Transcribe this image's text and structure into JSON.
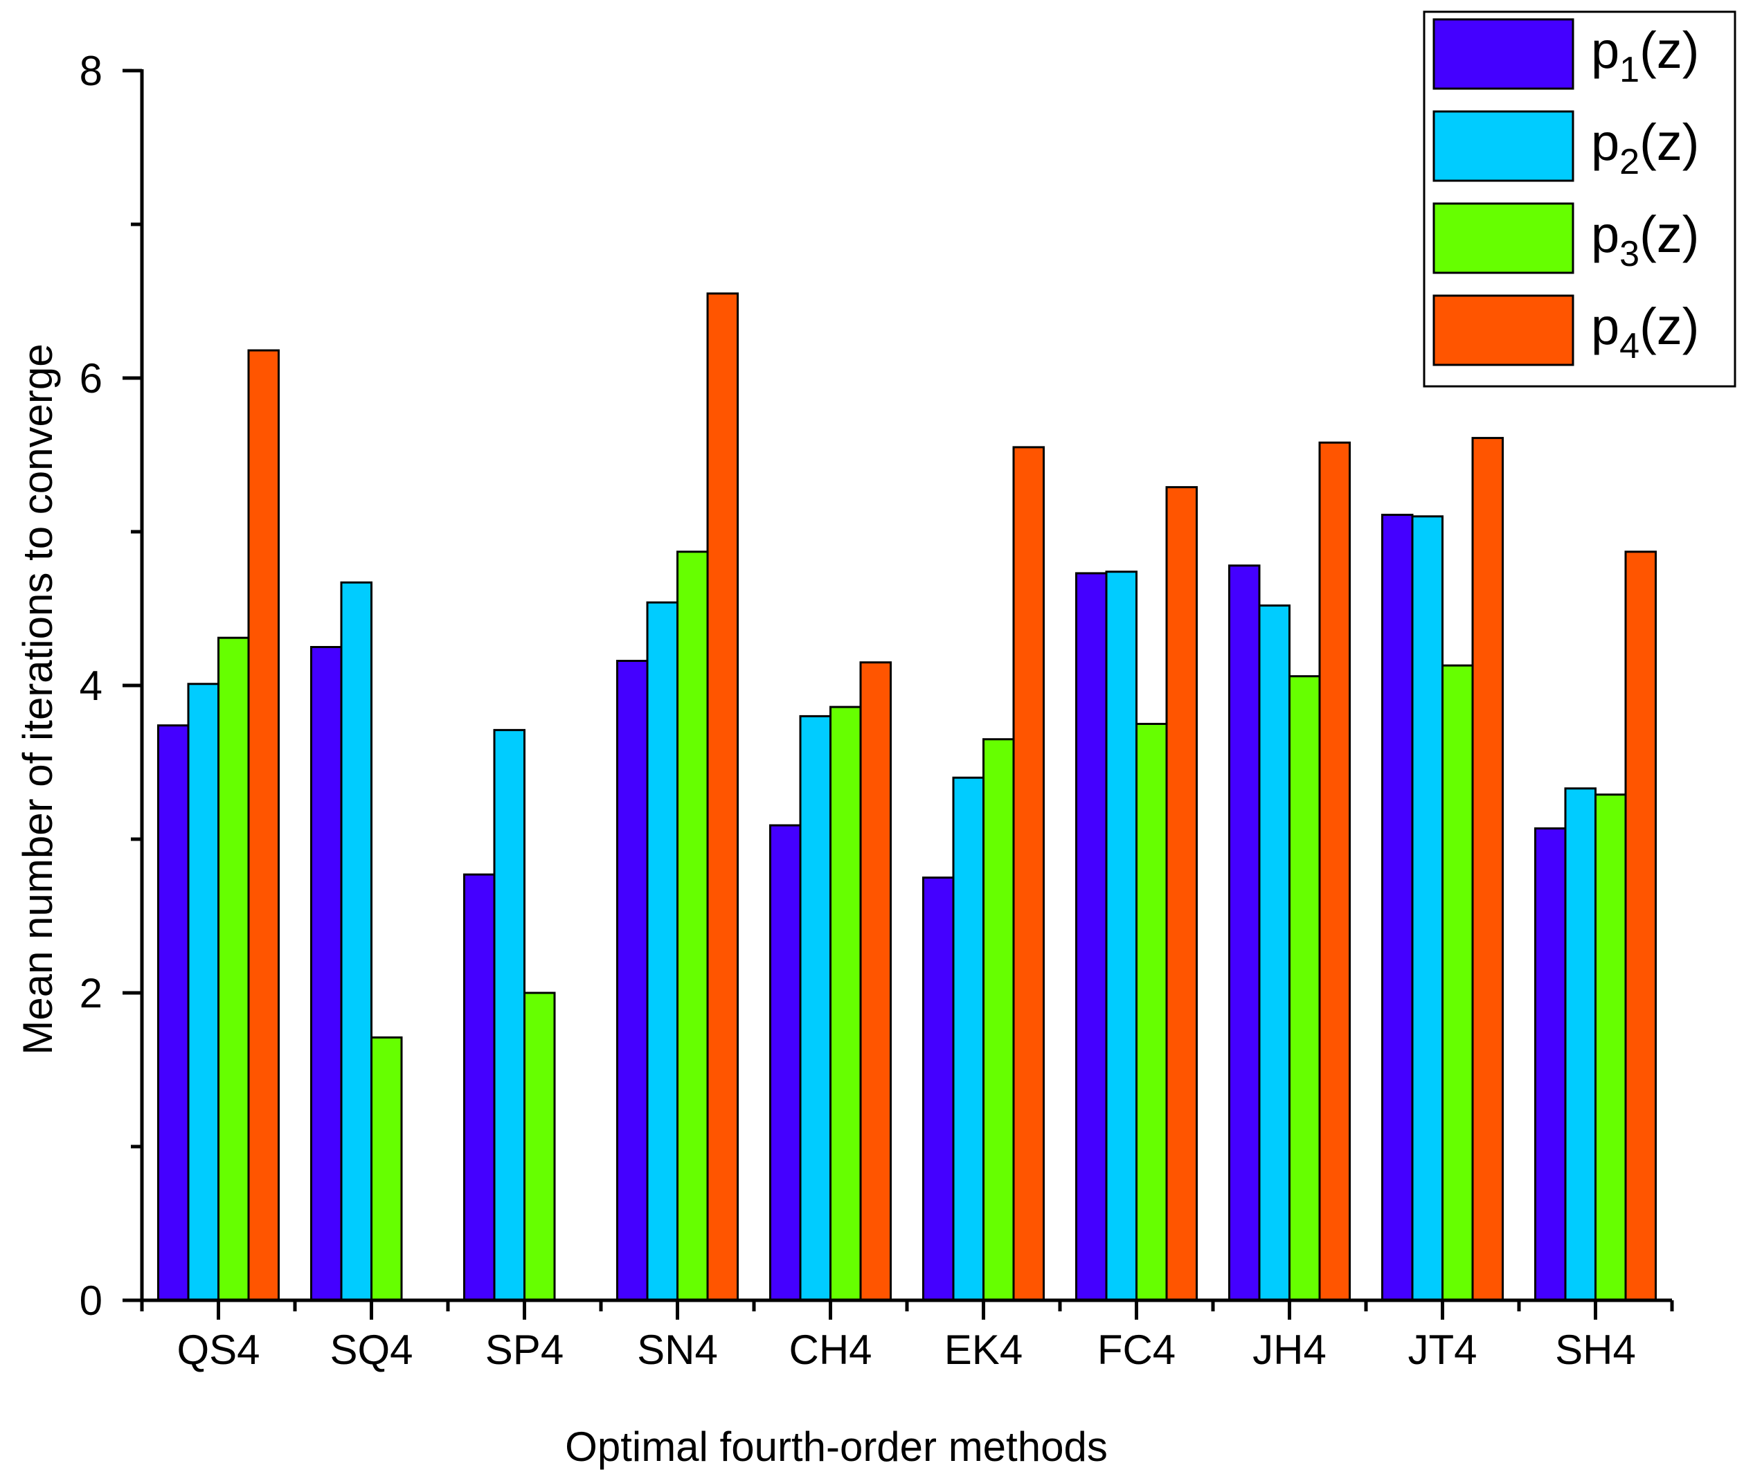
{
  "chart_data": {
    "type": "bar",
    "title": "",
    "xlabel": "Optimal fourth-order methods",
    "ylabel": "Mean number of iterations to converge",
    "ylim": [
      0,
      8
    ],
    "yticks": [
      "0",
      "2",
      "4",
      "6",
      "8"
    ],
    "grid": false,
    "legend_position": "top-right",
    "categories": [
      "QS4",
      "SQ4",
      "SP4",
      "SN4",
      "CH4",
      "EK4",
      "FC4",
      "JH4",
      "JT4",
      "SH4"
    ],
    "series": [
      {
        "name": "p1(z)",
        "label_base": "p",
        "label_sub": "1",
        "label_tail": "(z)",
        "color": "#4400ff",
        "values": [
          3.74,
          4.25,
          2.77,
          4.16,
          3.09,
          2.75,
          4.73,
          4.78,
          5.11,
          3.07
        ]
      },
      {
        "name": "p2(z)",
        "label_base": "p",
        "label_sub": "2",
        "label_tail": "(z)",
        "color": "#00ccff",
        "values": [
          4.01,
          4.67,
          3.71,
          4.54,
          3.8,
          3.4,
          4.74,
          4.52,
          5.1,
          3.33
        ]
      },
      {
        "name": "p3(z)",
        "label_base": "p",
        "label_sub": "3",
        "label_tail": "(z)",
        "color": "#66ff00",
        "values": [
          4.31,
          1.71,
          2.0,
          4.87,
          3.86,
          3.65,
          3.75,
          4.06,
          4.13,
          3.29
        ]
      },
      {
        "name": "p4(z)",
        "label_base": "p",
        "label_sub": "4",
        "label_tail": "(z)",
        "color": "#ff5500",
        "values": [
          6.18,
          null,
          null,
          6.55,
          4.15,
          5.55,
          5.29,
          5.58,
          5.61,
          4.87
        ]
      }
    ]
  }
}
